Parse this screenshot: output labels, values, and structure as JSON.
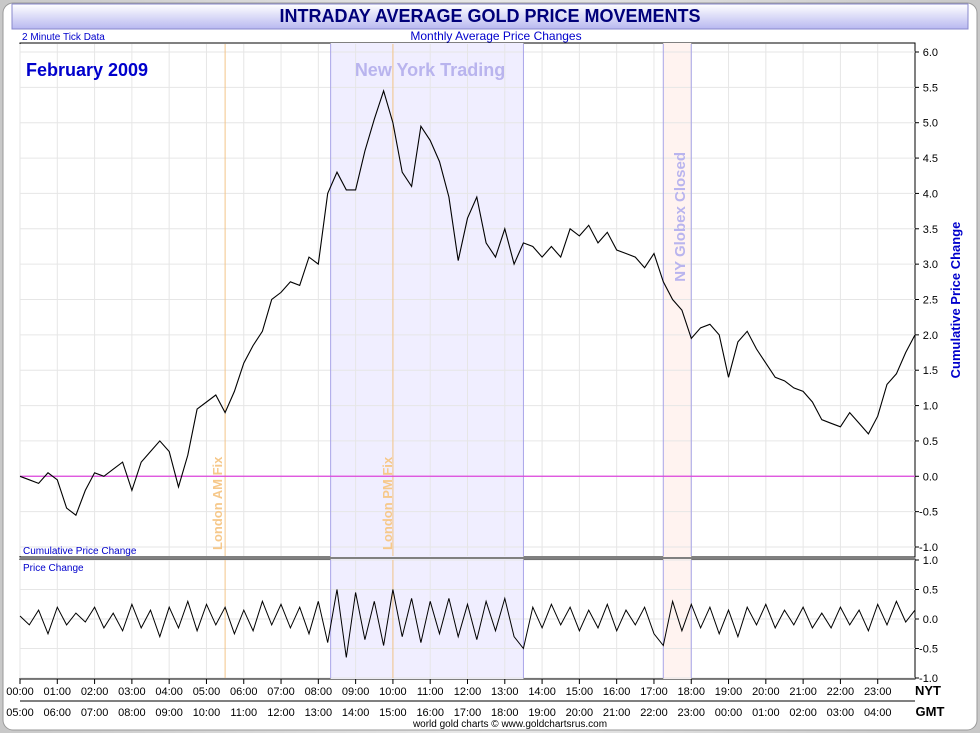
{
  "header": {
    "title": "INTRADAY AVERAGE GOLD PRICE MOVEMENTS",
    "subtitle": "Monthly Average Price Changes",
    "tick_note": "2 Minute Tick Data"
  },
  "footer": {
    "credit": "world gold charts © www.goldchartsrus.com"
  },
  "colors": {
    "background": "#ffffff",
    "frame": "#d8d8d8",
    "title_bar_top": "#ffffff",
    "title_bar_bottom": "#b8b8f0",
    "ny_band": "#f0eeff",
    "globex_band": "#fff3f0",
    "zero_line": "#dd44dd",
    "fix_line": "#f3c48a",
    "session_line": "#a8a4e8",
    "series_line": "#000000",
    "grid": "#e6e6e6",
    "label_blue": "#0000cc"
  },
  "chart_data": [
    {
      "type": "line",
      "panel": "main",
      "period_label": "February 2009",
      "panel_label": "Cumulative Price Change",
      "ylabel": "Cumulative Price Change",
      "ylim": [
        -1.0,
        6.0
      ],
      "y_ticks": [
        "6.0",
        "5.5",
        "5.0",
        "4.5",
        "4.0",
        "3.5",
        "3.0",
        "2.5",
        "2.0",
        "1.5",
        "1.0",
        "0.5",
        "0.0",
        "-0.5",
        "-1.0"
      ],
      "y_tick_values": [
        6.0,
        5.5,
        5.0,
        4.5,
        4.0,
        3.5,
        3.0,
        2.5,
        2.0,
        1.5,
        1.0,
        0.5,
        0.0,
        -0.5,
        -1.0
      ],
      "xlim": [
        0,
        24
      ],
      "x_ticks_nyt": [
        "00:00",
        "01:00",
        "02:00",
        "03:00",
        "04:00",
        "05:00",
        "06:00",
        "07:00",
        "08:00",
        "09:00",
        "10:00",
        "11:00",
        "12:00",
        "13:00",
        "14:00",
        "15:00",
        "16:00",
        "17:00",
        "18:00",
        "19:00",
        "20:00",
        "21:00",
        "22:00",
        "23:00"
      ],
      "x_ticks_gmt": [
        "05:00",
        "06:00",
        "07:00",
        "08:00",
        "09:00",
        "10:00",
        "11:00",
        "12:00",
        "13:00",
        "14:00",
        "15:00",
        "16:00",
        "17:00",
        "18:00",
        "19:00",
        "20:00",
        "21:00",
        "22:00",
        "23:00",
        "00:00",
        "01:00",
        "02:00",
        "03:00",
        "04:00"
      ],
      "x_axis_labels": {
        "nyt": "NYT",
        "gmt": "GMT"
      },
      "grid": true,
      "annotations": {
        "ny_session": {
          "label": "New York Trading",
          "start": 8.33,
          "end": 13.5
        },
        "london_am_fix": {
          "label": "London AM Fix",
          "x": 5.5
        },
        "london_pm_fix": {
          "label": "London PM Fix",
          "x": 10.0
        },
        "globex_closed": {
          "label": "NY Globex Closed",
          "start": 17.25,
          "end": 18.0
        }
      },
      "x": [
        0.0,
        0.25,
        0.5,
        0.75,
        1.0,
        1.25,
        1.5,
        1.75,
        2.0,
        2.25,
        2.5,
        2.75,
        3.0,
        3.25,
        3.5,
        3.75,
        4.0,
        4.25,
        4.5,
        4.75,
        5.0,
        5.25,
        5.5,
        5.75,
        6.0,
        6.25,
        6.5,
        6.75,
        7.0,
        7.25,
        7.5,
        7.75,
        8.0,
        8.25,
        8.5,
        8.75,
        9.0,
        9.25,
        9.5,
        9.75,
        10.0,
        10.25,
        10.5,
        10.75,
        11.0,
        11.25,
        11.5,
        11.75,
        12.0,
        12.25,
        12.5,
        12.75,
        13.0,
        13.25,
        13.5,
        13.75,
        14.0,
        14.25,
        14.5,
        14.75,
        15.0,
        15.25,
        15.5,
        15.75,
        16.0,
        16.25,
        16.5,
        16.75,
        17.0,
        17.25,
        17.5,
        17.75,
        18.0,
        18.25,
        18.5,
        18.75,
        19.0,
        19.25,
        19.5,
        19.75,
        20.0,
        20.25,
        20.5,
        20.75,
        21.0,
        21.25,
        21.5,
        21.75,
        22.0,
        22.25,
        22.5,
        22.75,
        23.0,
        23.25,
        23.5,
        23.75,
        24.0
      ],
      "values": [
        0.0,
        -0.05,
        -0.1,
        0.05,
        -0.05,
        -0.45,
        -0.55,
        -0.2,
        0.05,
        0.0,
        0.1,
        0.2,
        -0.2,
        0.2,
        0.35,
        0.5,
        0.35,
        -0.15,
        0.3,
        0.95,
        1.05,
        1.15,
        0.9,
        1.2,
        1.6,
        1.85,
        2.05,
        2.5,
        2.6,
        2.75,
        2.7,
        3.1,
        3.0,
        4.0,
        4.3,
        4.05,
        4.05,
        4.6,
        5.05,
        5.45,
        5.0,
        4.3,
        4.1,
        4.95,
        4.75,
        4.45,
        3.95,
        3.05,
        3.65,
        3.95,
        3.3,
        3.1,
        3.5,
        3.0,
        3.3,
        3.25,
        3.1,
        3.25,
        3.1,
        3.5,
        3.4,
        3.55,
        3.3,
        3.45,
        3.2,
        3.15,
        3.1,
        2.95,
        3.15,
        2.75,
        2.5,
        2.35,
        1.95,
        2.1,
        2.15,
        2.0,
        1.4,
        1.9,
        2.05,
        1.8,
        1.6,
        1.4,
        1.35,
        1.25,
        1.2,
        1.05,
        0.8,
        0.75,
        0.7,
        0.9,
        0.75,
        0.6,
        0.85,
        1.3,
        1.45,
        1.75,
        2.0
      ]
    },
    {
      "type": "line",
      "panel": "lower",
      "panel_label": "Price Change",
      "ylim": [
        -1.0,
        1.0
      ],
      "y_ticks": [
        "1.0",
        "0.5",
        "0.0",
        "-0.5",
        "-1.0"
      ],
      "y_tick_values": [
        1.0,
        0.5,
        0.0,
        -0.5,
        -1.0
      ],
      "xlim": [
        0,
        24
      ],
      "x": [
        0.0,
        0.25,
        0.5,
        0.75,
        1.0,
        1.25,
        1.5,
        1.75,
        2.0,
        2.25,
        2.5,
        2.75,
        3.0,
        3.25,
        3.5,
        3.75,
        4.0,
        4.25,
        4.5,
        4.75,
        5.0,
        5.25,
        5.5,
        5.75,
        6.0,
        6.25,
        6.5,
        6.75,
        7.0,
        7.25,
        7.5,
        7.75,
        8.0,
        8.25,
        8.5,
        8.75,
        9.0,
        9.25,
        9.5,
        9.75,
        10.0,
        10.25,
        10.5,
        10.75,
        11.0,
        11.25,
        11.5,
        11.75,
        12.0,
        12.25,
        12.5,
        12.75,
        13.0,
        13.25,
        13.5,
        13.75,
        14.0,
        14.25,
        14.5,
        14.75,
        15.0,
        15.25,
        15.5,
        15.75,
        16.0,
        16.25,
        16.5,
        16.75,
        17.0,
        17.25,
        17.5,
        17.75,
        18.0,
        18.25,
        18.5,
        18.75,
        19.0,
        19.25,
        19.5,
        19.75,
        20.0,
        20.25,
        20.5,
        20.75,
        21.0,
        21.25,
        21.5,
        21.75,
        22.0,
        22.25,
        22.5,
        22.75,
        23.0,
        23.25,
        23.5,
        23.75,
        24.0
      ],
      "values": [
        0.05,
        -0.1,
        0.15,
        -0.25,
        0.2,
        -0.1,
        0.1,
        -0.05,
        0.2,
        -0.15,
        0.1,
        -0.2,
        0.25,
        -0.15,
        0.15,
        -0.3,
        0.2,
        -0.15,
        0.3,
        -0.2,
        0.25,
        -0.1,
        0.2,
        -0.25,
        0.15,
        -0.2,
        0.3,
        -0.1,
        0.25,
        -0.15,
        0.2,
        -0.25,
        0.3,
        -0.4,
        0.5,
        -0.65,
        0.45,
        -0.35,
        0.3,
        -0.45,
        0.5,
        -0.3,
        0.35,
        -0.4,
        0.3,
        -0.25,
        0.35,
        -0.3,
        0.25,
        -0.35,
        0.3,
        -0.2,
        0.35,
        -0.3,
        -0.5,
        0.2,
        -0.15,
        0.25,
        -0.1,
        0.2,
        -0.2,
        0.15,
        -0.15,
        0.25,
        -0.2,
        0.15,
        -0.1,
        0.2,
        -0.25,
        -0.45,
        0.3,
        -0.2,
        0.25,
        -0.15,
        0.2,
        -0.25,
        0.15,
        -0.3,
        0.2,
        -0.1,
        0.25,
        -0.15,
        0.15,
        -0.1,
        0.2,
        -0.15,
        0.1,
        -0.15,
        0.2,
        -0.1,
        0.15,
        -0.2,
        0.25,
        -0.1,
        0.3,
        -0.05,
        0.15
      ]
    }
  ]
}
